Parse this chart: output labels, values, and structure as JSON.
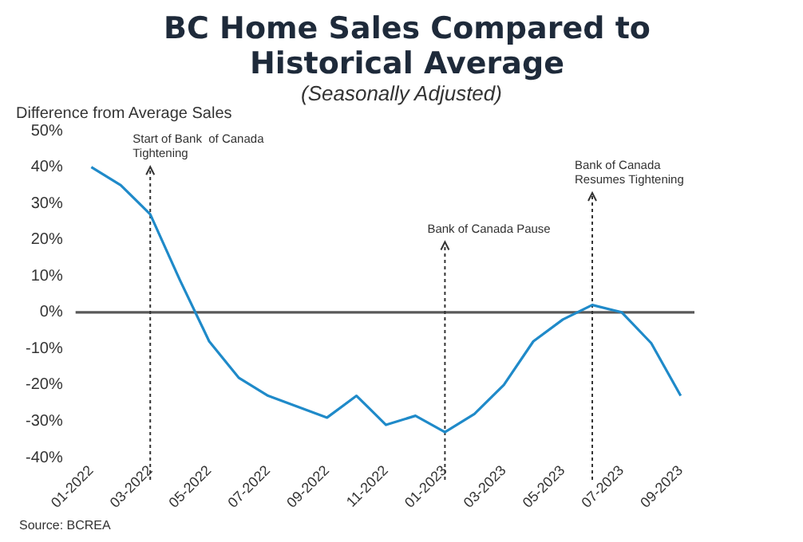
{
  "chart_data": {
    "type": "line",
    "title": "BC Home Sales Compared to Historical Average",
    "subtitle": "(Seasonally Adjusted)",
    "ylabel": "Difference from Average Sales",
    "x": [
      "2022-01",
      "2022-02",
      "2022-03",
      "2022-04",
      "2022-05",
      "2022-06",
      "2022-07",
      "2022-08",
      "2022-09",
      "2022-10",
      "2022-11",
      "2022-12",
      "2023-01",
      "2023-02",
      "2023-03",
      "2023-04",
      "2023-05",
      "2023-06",
      "2023-07",
      "2023-08",
      "2023-09"
    ],
    "series": [
      {
        "color": "#1f8ac9",
        "values": [
          40,
          35,
          27,
          9,
          -8,
          -18,
          -23,
          -26,
          -29,
          -23,
          -31,
          -28.5,
          -33,
          -28,
          -20,
          -8,
          -2,
          2,
          0,
          -8.5,
          -23
        ]
      }
    ],
    "xlim": [
      "2021-12-15",
      "2023-09-15"
    ],
    "xticks": [
      {
        "value": "2022-01",
        "label": "01-2022"
      },
      {
        "value": "2022-03",
        "label": "03-2022"
      },
      {
        "value": "2022-05",
        "label": "05-2022"
      },
      {
        "value": "2022-07",
        "label": "07-2022"
      },
      {
        "value": "2022-09",
        "label": "09-2022"
      },
      {
        "value": "2022-11",
        "label": "11-2022"
      },
      {
        "value": "2023-01",
        "label": "01-2023"
      },
      {
        "value": "2023-03",
        "label": "03-2023"
      },
      {
        "value": "2023-05",
        "label": "05-2023"
      },
      {
        "value": "2023-07",
        "label": "07-2023"
      },
      {
        "value": "2023-09",
        "label": "09-2023"
      }
    ],
    "ylim": [
      -40,
      50
    ],
    "yticks": [
      {
        "value": -40,
        "label": "-40%"
      },
      {
        "value": -30,
        "label": "-30%"
      },
      {
        "value": -20,
        "label": "-20%"
      },
      {
        "value": -10,
        "label": "-10%"
      },
      {
        "value": 0,
        "label": "0%"
      },
      {
        "value": 10,
        "label": "10%"
      },
      {
        "value": 20,
        "label": "20%"
      },
      {
        "value": 30,
        "label": "30%"
      },
      {
        "value": 40,
        "label": "40%"
      },
      {
        "value": 50,
        "label": "50%"
      }
    ],
    "ref_lines": [
      {
        "axis": "y",
        "value": 0,
        "color": "#595959",
        "line_style": "solid"
      },
      {
        "axis": "x",
        "value": "2022-03",
        "label": "Start of Bank  of Canada\nTightening",
        "color": "#333333",
        "line_style": "dotted"
      },
      {
        "axis": "x",
        "value": "2023-01",
        "label": "Bank of Canada Pause",
        "color": "#333333",
        "line_style": "dotted"
      },
      {
        "axis": "x",
        "value": "2023-06",
        "label": "Bank of Canada\nResumes Tightening",
        "color": "#333333",
        "line_style": "dotted"
      }
    ],
    "annotations": [
      "Source: BCREA"
    ],
    "grid": false,
    "legend": false,
    "marker": "none",
    "line_style": "solid"
  }
}
